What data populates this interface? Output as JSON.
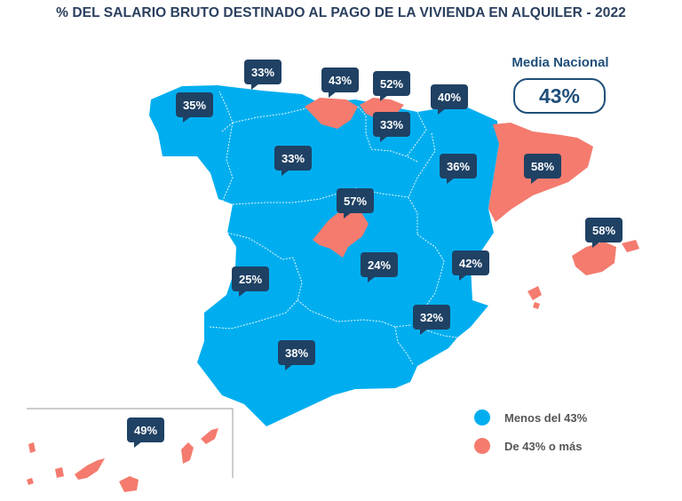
{
  "title": "% DEL SALARIO BRUTO DESTINADO AL PAGO DE LA VIVIENDA EN ALQUILER - 2022",
  "national": {
    "label": "Media Nacional",
    "value": "43%"
  },
  "colors": {
    "below": "#00aeef",
    "above": "#f47b6e",
    "callout": "#1f4164",
    "accent": "#1f4e79"
  },
  "legend": [
    {
      "label": "Menos del 43%",
      "color": "#00aeef"
    },
    {
      "label": "De 43% o más",
      "color": "#f47b6e"
    }
  ],
  "regions": [
    {
      "name": "galicia",
      "value": "35%",
      "class": "below"
    },
    {
      "name": "asturias",
      "value": "33%",
      "class": "below"
    },
    {
      "name": "cantabria",
      "value": "43%",
      "class": "above"
    },
    {
      "name": "pais-vasco",
      "value": "52%",
      "class": "above"
    },
    {
      "name": "navarra",
      "value": "40%",
      "class": "below"
    },
    {
      "name": "la-rioja",
      "value": "33%",
      "class": "below"
    },
    {
      "name": "castilla-y-leon",
      "value": "33%",
      "class": "below"
    },
    {
      "name": "aragon",
      "value": "36%",
      "class": "below"
    },
    {
      "name": "cataluna",
      "value": "58%",
      "class": "above"
    },
    {
      "name": "madrid",
      "value": "57%",
      "class": "above"
    },
    {
      "name": "baleares",
      "value": "58%",
      "class": "above"
    },
    {
      "name": "castilla-la-mancha",
      "value": "24%",
      "class": "below"
    },
    {
      "name": "comunitat-valenciana",
      "value": "42%",
      "class": "below"
    },
    {
      "name": "extremadura",
      "value": "25%",
      "class": "below"
    },
    {
      "name": "murcia",
      "value": "32%",
      "class": "below"
    },
    {
      "name": "andalucia",
      "value": "38%",
      "class": "below"
    },
    {
      "name": "canarias",
      "value": "49%",
      "class": "above"
    }
  ]
}
